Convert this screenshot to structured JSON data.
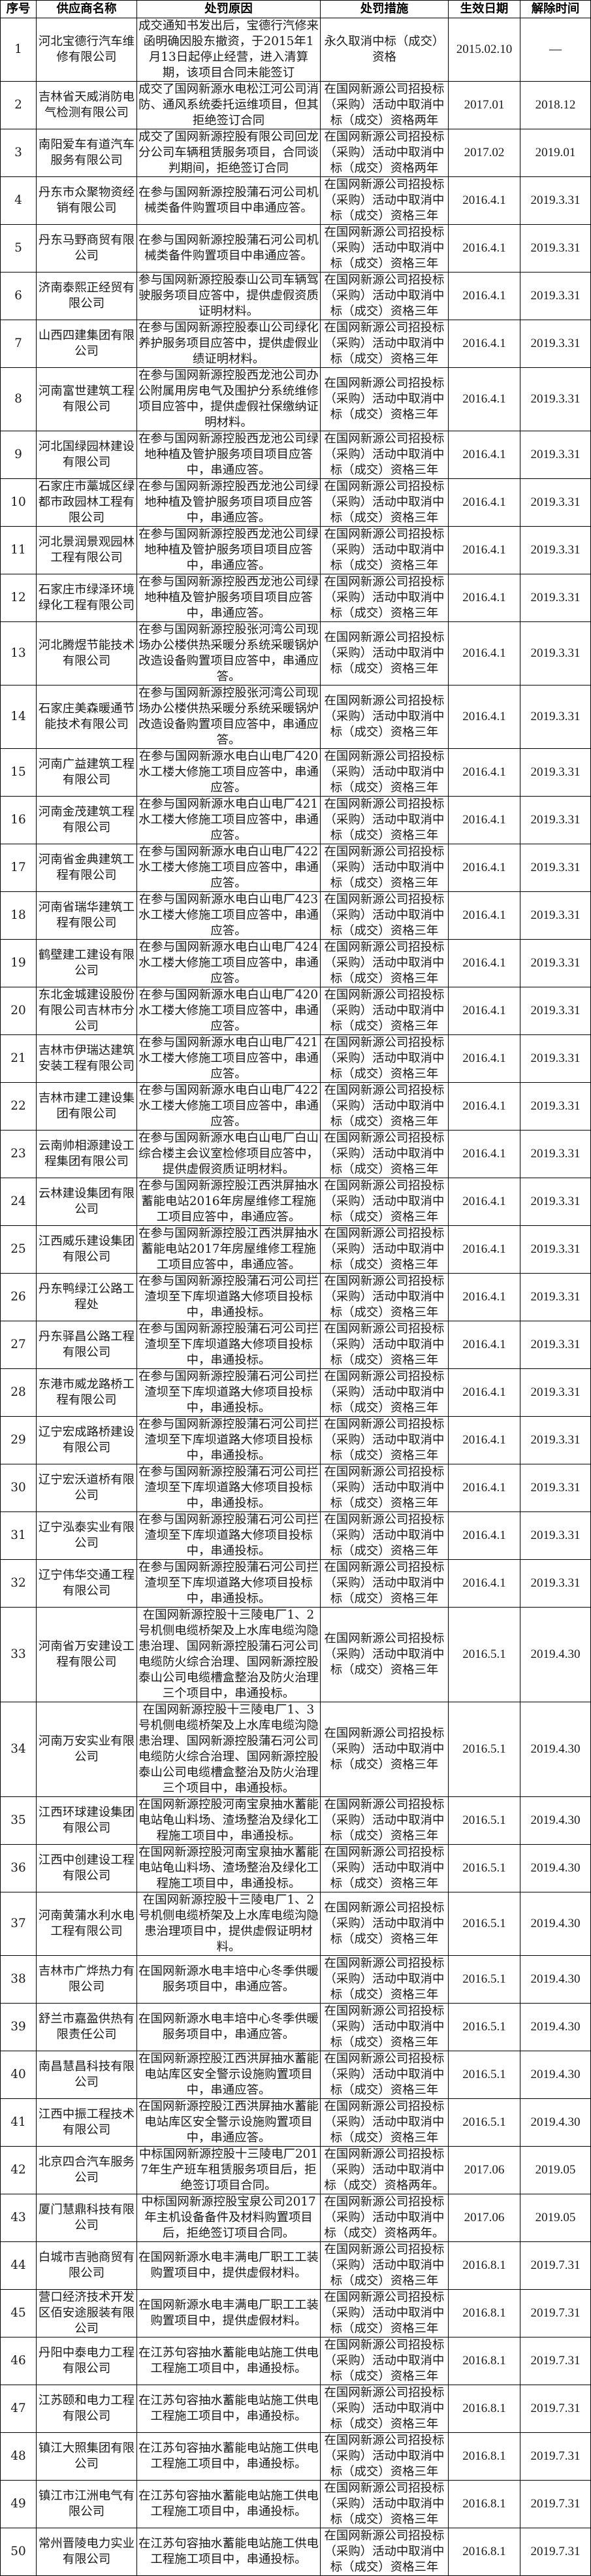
{
  "headers": [
    "序号",
    "供应商名称",
    "处罚原因",
    "处罚措施",
    "生效日期",
    "解除时间"
  ],
  "rows": [
    {
      "no": "1",
      "name": "河北宝德行汽车维修有限公司",
      "reason": "成交通知书发出后，宝德行汽修来函明确因股东撤资，于2015年1月13日起停止经营，进入清算期，该项目合同未能签订",
      "measure": "永久取消中标（成交）资格",
      "start": "2015.02.10",
      "end": "—"
    },
    {
      "no": "2",
      "name": "吉林省天威消防电气检测有限公司",
      "reason": "成交了国网新源水电松江河公司消防、通风系统委托运维项目，但其拒绝签订合同",
      "measure": "在国网新源公司招投标（采购）活动中取消中标（成交）资格两年",
      "start": "2017.01",
      "end": "2018.12"
    },
    {
      "no": "3",
      "name": "南阳爱车有道汽车服务有限公司",
      "reason": "成交了国网新源控股有限公司回龙分公司车辆租赁服务项目，合同谈判期间，拒绝签订合同",
      "measure": "在国网新源公司招投标（采购）活动中取消中标（成交）资格两年",
      "start": "2017.02",
      "end": "2019.01"
    },
    {
      "no": "4",
      "name": "丹东市众聚物资经销有限公司",
      "reason": "在参与国网新源控股蒲石河公司机械类备件购置项目中串通应答。",
      "measure": "在国网新源公司招投标（采购）活动中取消中标（成交）资格三年",
      "start": "2016.4.1",
      "end": "2019.3.31"
    },
    {
      "no": "5",
      "name": "丹东马野商贸有限公司",
      "reason": "在参与国网新源控股蒲石河公司机械类备件购置项目中串通应答。",
      "measure": "在国网新源公司招投标（采购）活动中取消中标（成交）资格三年",
      "start": "2016.4.1",
      "end": "2019.3.31"
    },
    {
      "no": "6",
      "name": "济南泰熙正经贸有限公司",
      "reason": "参与国网新源控股泰山公司车辆驾驶服务项目应答中，提供虚假资质证明材料。",
      "measure": "在国网新源公司招投标（采购）活动中取消中标（成交）资格三年",
      "start": "2016.4.1",
      "end": "2019.3.31"
    },
    {
      "no": "7",
      "name": "山西四建集团有限公司",
      "reason": "在参与国网新源控股泰山公司绿化养护服务项目应答中，提供虚假业绩证明材料。",
      "measure": "在国网新源公司招投标（采购）活动中取消中标（成交）资格三年",
      "start": "2016.4.1",
      "end": "2019.3.31"
    },
    {
      "no": "8",
      "name": "河南富世建筑工程有限公司",
      "reason": "在参与国网新源控股西龙池公司办公附属用房电气及围护分系统维修项目应答中，提供虚假社保缴纳证明材料。",
      "measure": "在国网新源公司招投标（采购）活动中取消中标（成交）资格三年",
      "start": "2016.4.1",
      "end": "2019.3.31"
    },
    {
      "no": "9",
      "name": "河北国绿园林建设有限公司",
      "reason": "在参与国网新源控股西龙池公司绿地种植及管护服务项目项目应答中，串通应答。",
      "measure": "在国网新源公司招投标（采购）活动中取消中标（成交）资格三年",
      "start": "2016.4.1",
      "end": "2019.3.31"
    },
    {
      "no": "10",
      "name": "石家庄市藁城区绿都市政园林工程有限公司",
      "reason": "在参与国网新源控股西龙池公司绿地种植及管护服务项目项目应答中，串通应答。",
      "measure": "在国网新源公司招投标（采购）活动中取消中标（成交）资格三年",
      "start": "2016.4.1",
      "end": "2019.3.31"
    },
    {
      "no": "11",
      "name": "河北景润景观园林工程有限公司",
      "reason": "在参与国网新源控股西龙池公司绿地种植及管护服务项目项目应答中，串通应答。",
      "measure": "在国网新源公司招投标（采购）活动中取消中标（成交）资格三年",
      "start": "2016.4.1",
      "end": "2019.3.31"
    },
    {
      "no": "12",
      "name": "石家庄市绿泽环境绿化工程有限公司",
      "reason": "在参与国网新源控股西龙池公司绿地种植及管护服务项目项目应答中，串通应答。",
      "measure": "在国网新源公司招投标（采购）活动中取消中标（成交）资格三年",
      "start": "2016.4.1",
      "end": "2019.3.31"
    },
    {
      "no": "13",
      "name": "河北腾煜节能技术有限公司",
      "reason": "在参与国网新源控股张河湾公司现场办公楼供热采暖分系统采暖锅炉改造设备购置项目应答中，串通应答。",
      "measure": "在国网新源公司招投标（采购）活动中取消中标（成交）资格三年",
      "start": "2016.4.1",
      "end": "2019.3.31"
    },
    {
      "no": "14",
      "name": "石家庄美森暖通节能技术有限公司",
      "reason": "在参与国网新源控股张河湾公司现场办公楼供热采暖分系统采暖锅炉改造设备购置项目应答中，串通应答。",
      "measure": "在国网新源公司招投标（采购）活动中取消中标（成交）资格三年",
      "start": "2016.4.1",
      "end": "2019.3.31"
    },
    {
      "no": "15",
      "name": "河南广益建筑工程有限公司",
      "reason": "在参与国网新源水电白山电厂420水工楼大修施工项目应答中，串通应答。",
      "measure": "在国网新源公司招投标（采购）活动中取消中标（成交）资格三年",
      "start": "2016.4.1",
      "end": "2019.3.31"
    },
    {
      "no": "16",
      "name": "河南金茂建筑工程有限公司",
      "reason": "在参与国网新源水电白山电厂421水工楼大修施工项目应答中，串通应答。",
      "measure": "在国网新源公司招投标（采购）活动中取消中标（成交）资格三年",
      "start": "2016.4.1",
      "end": "2019.3.31"
    },
    {
      "no": "17",
      "name": "河南省金典建筑工程有限公司",
      "reason": "在参与国网新源水电白山电厂422水工楼大修施工项目应答中，串通应答。",
      "measure": "在国网新源公司招投标（采购）活动中取消中标（成交）资格三年",
      "start": "2016.4.1",
      "end": "2019.3.31"
    },
    {
      "no": "18",
      "name": "河南省瑞华建筑工程有限公司",
      "reason": "在参与国网新源水电白山电厂423水工楼大修施工项目应答中，串通应答。",
      "measure": "在国网新源公司招投标（采购）活动中取消中标（成交）资格三年",
      "start": "2016.4.1",
      "end": "2019.3.31"
    },
    {
      "no": "19",
      "name": "鹤壁建工建设有限公司",
      "reason": "在参与国网新源水电白山电厂424水工楼大修施工项目应答中，串通应答。",
      "measure": "在国网新源公司招投标（采购）活动中取消中标（成交）资格三年",
      "start": "2016.4.1",
      "end": "2019.3.31"
    },
    {
      "no": "20",
      "name": "东北金城建设股份有限公司吉林市分公司",
      "reason": "在参与国网新源水电白山电厂420水工楼大修施工项目应答中，串通应答。",
      "measure": "在国网新源公司招投标（采购）活动中取消中标（成交）资格三年",
      "start": "2016.4.1",
      "end": "2019.3.31"
    },
    {
      "no": "21",
      "name": "吉林市伊瑞达建筑安装工程有限公司",
      "reason": "在参与国网新源水电白山电厂421水工楼大修施工项目应答中，串通应答。",
      "measure": "在国网新源公司招投标（采购）活动中取消中标（成交）资格三年",
      "start": "2016.4.1",
      "end": "2019.3.31"
    },
    {
      "no": "22",
      "name": "吉林市建工建设集团有限公司",
      "reason": "在参与国网新源水电白山电厂422水工楼大修施工项目应答中，串通应答。",
      "measure": "在国网新源公司招投标（采购）活动中取消中标（成交）资格三年",
      "start": "2016.4.1",
      "end": "2019.3.31"
    },
    {
      "no": "23",
      "name": "云南帅相源建设工程集团有限公司",
      "reason": "在参与国网新源水电白山电厂白山综合楼主会议室检修项目应答中，提供虚假资质证明材料。",
      "measure": "在国网新源公司招投标（采购）活动中取消中标（成交）资格三年",
      "start": "2016.4.1",
      "end": "2019.3.31"
    },
    {
      "no": "24",
      "name": "云林建设集团有限公司",
      "reason": "在参与国网新源控股江西洪屏抽水蓄能电站2016年房屋维修工程施工项目应答中，串通应答。",
      "measure": "在国网新源公司招投标（采购）活动中取消中标（成交）资格三年",
      "start": "2016.4.1",
      "end": "2019.3.31"
    },
    {
      "no": "25",
      "name": "江西威乐建设集团有限公司",
      "reason": "在参与国网新源控股江西洪屏抽水蓄能电站2017年房屋维修工程施工项目应答中，串通应答。",
      "measure": "在国网新源公司招投标（采购）活动中取消中标（成交）资格三年",
      "start": "2016.4.1",
      "end": "2019.3.31"
    },
    {
      "no": "26",
      "name": "丹东鸭绿江公路工程处",
      "reason": "在参与国网新源控股蒲石河公司拦渣坝至下库坝道路大修项目投标中，串通投标。",
      "measure": "在国网新源公司招投标（采购）活动中取消中标（成交）资格三年",
      "start": "2016.4.1",
      "end": "2019.3.31"
    },
    {
      "no": "27",
      "name": "丹东驿昌公路工程有限公司",
      "reason": "在参与国网新源控股蒲石河公司拦渣坝至下库坝道路大修项目投标中，串通投标。",
      "measure": "在国网新源公司招投标（采购）活动中取消中标（成交）资格三年",
      "start": "2016.4.1",
      "end": "2019.3.31"
    },
    {
      "no": "28",
      "name": "东港市威龙路桥工程有限公司",
      "reason": "在参与国网新源控股蒲石河公司拦渣坝至下库坝道路大修项目投标中，串通投标。",
      "measure": "在国网新源公司招投标（采购）活动中取消中标（成交）资格三年",
      "start": "2016.4.1",
      "end": "2019.3.31"
    },
    {
      "no": "29",
      "name": "辽宁宏成路桥建设有限公司",
      "reason": "在参与国网新源控股蒲石河公司拦渣坝至下库坝道路大修项目投标中，串通投标。",
      "measure": "在国网新源公司招投标（采购）活动中取消中标（成交）资格三年",
      "start": "2016.4.1",
      "end": "2019.3.31"
    },
    {
      "no": "30",
      "name": "辽宁宏沃道桥有限公司",
      "reason": "在参与国网新源控股蒲石河公司拦渣坝至下库坝道路大修项目投标中，串通投标。",
      "measure": "在国网新源公司招投标（采购）活动中取消中标（成交）资格三年",
      "start": "2016.4.1",
      "end": "2019.3.31"
    },
    {
      "no": "31",
      "name": "辽宁泓泰实业有限公司",
      "reason": "在参与国网新源控股蒲石河公司拦渣坝至下库坝道路大修项目投标中，串通投标。",
      "measure": "在国网新源公司招投标（采购）活动中取消中标（成交）资格三年",
      "start": "2016.4.1",
      "end": "2019.3.31"
    },
    {
      "no": "32",
      "name": "辽宁伟华交通工程有限公司",
      "reason": "在参与国网新源控股蒲石河公司拦渣坝至下库坝道路大修项目投标中，串通投标。",
      "measure": "在国网新源公司招投标（采购）活动中取消中标（成交）资格三年",
      "start": "2016.4.1",
      "end": "2019.3.31"
    },
    {
      "no": "33",
      "name": "河南省万安建设工程有限公司",
      "reason": "在国网新源控股十三陵电厂1、2号机侧电缆桥架及上水库电缆沟隐患治理、国网新源控股蒲石河公司电缆防火综合治理、国网新源控股泰山公司电缆槽盒整治及防火治理三个项目中，串通投标。",
      "measure": "在国网新源公司招投标（采购）活动中取消中标（成交）资格三年",
      "start": "2016.5.1",
      "end": "2019.4.30"
    },
    {
      "no": "34",
      "name": "河南万安实业有限公司",
      "reason": "在国网新源控股十三陵电厂1、3号机侧电缆桥架及上水库电缆沟隐患治理、国网新源控股蒲石河公司电缆防火综合治理、国网新源控股泰山公司电缆槽盒整治及防火治理三个项目中，串通投标。",
      "measure": "在国网新源公司招投标（采购）活动中取消中标（成交）资格三年",
      "start": "2016.5.1",
      "end": "2019.4.30"
    },
    {
      "no": "35",
      "name": "江西环球建设集团有限公司",
      "reason": "在国网新源控股河南宝泉抽水蓄能电站龟山料场、渣场整治及绿化工程施工项目中，串通投标。",
      "measure": "在国网新源公司招投标（采购）活动中取消中标（成交）资格三年",
      "start": "2016.5.1",
      "end": "2019.4.30"
    },
    {
      "no": "36",
      "name": "江西中创建设工程有限公司",
      "reason": "在国网新源控股河南宝泉抽水蓄能电站龟山料场、渣场整治及绿化工程施工项目中，串通投标。",
      "measure": "在国网新源公司招投标（采购）活动中取消中标（成交）资格三年",
      "start": "2016.5.1",
      "end": "2019.4.30"
    },
    {
      "no": "37",
      "name": "河南黄蒲水利水电工程有限公司",
      "reason": "在国网新源控股十三陵电厂1、2号机侧电缆桥架及上水库电缆沟隐患治理项目中，提供虚假证明材料。",
      "measure": "在国网新源公司招投标（采购）活动中取消中标（成交）资格三年",
      "start": "2016.5.1",
      "end": "2019.4.30"
    },
    {
      "no": "38",
      "name": "吉林市广烨热力有限公司",
      "reason": "在国网新源水电丰培中心冬季供暖服务项目中，串通应答。",
      "measure": "在国网新源公司招投标（采购）活动中取消中标（成交）资格三年",
      "start": "2016.5.1",
      "end": "2019.4.30"
    },
    {
      "no": "39",
      "name": "舒兰市嘉盈供热有限责任公司",
      "reason": "在国网新源水电丰培中心冬季供暖服务项目中，串通应答。",
      "measure": "在国网新源公司招投标（采购）活动中取消中标（成交）资格三年",
      "start": "2016.5.1",
      "end": "2019.4.30"
    },
    {
      "no": "40",
      "name": "南昌慧昌科技有限公司",
      "reason": "在国网新源控股江西洪屏抽水蓄能电站库区安全警示设施购置项目中，串通应答。",
      "measure": "在国网新源公司招投标（采购）活动中取消中标（成交）资格三年",
      "start": "2016.5.1",
      "end": "2019.4.30"
    },
    {
      "no": "41",
      "name": "江西中振工程技术有限公司",
      "reason": "在国网新源控股江西洪屏抽水蓄能电站库区安全警示设施购置项目中，串通应答。",
      "measure": "在国网新源公司招投标（采购）活动中取消中标（成交）资格三年",
      "start": "2016.5.1",
      "end": "2019.4.30"
    },
    {
      "no": "42",
      "name": "北京四合汽车服务公司",
      "reason": "中标国网新源控股十三陵电厂2017年生产班车租赁服务项目后，拒绝签订项目合同。",
      "measure": "在国网新源公司招投标（采购）活动中取消中标（成交）资格两年。",
      "start": "2017.06",
      "end": "2019.05"
    },
    {
      "no": "43",
      "name": "厦门慧鼎科技有限公司",
      "reason": "中标国网新源控股宝泉公司2017年主机设备备件及材料购置项目后，拒绝签订项目合同。",
      "measure": "在国网新源公司招投标（采购）活动中取消中标（成交）资格两年。",
      "start": "2017.06",
      "end": "2019.05"
    },
    {
      "no": "44",
      "name": "白城市吉驰商贸有限公司",
      "reason": "在国网新源水电丰满电厂职工工装购置项目中，提供虚假材料。",
      "measure": "在国网新源公司招投标（采购）活动中取消中标（成交）资格三年",
      "start": "2016.8.1",
      "end": "2019.7.31"
    },
    {
      "no": "45",
      "name": "营口经济技术开发区佰安途服装有限公司",
      "reason": "在国网新源水电丰满电厂职工工装购置项目中，提供虚假材料。",
      "measure": "在国网新源公司招投标（采购）活动中取消中标（成交）资格三年",
      "start": "2016.8.1",
      "end": "2019.7.31"
    },
    {
      "no": "46",
      "name": "丹阳中泰电力工程有限公司",
      "reason": "在江苏句容抽水蓄能电站施工供电工程施工项目中，串通投标。",
      "measure": "在国网新源公司招投标（采购）活动中取消中标（成交）资格三年",
      "start": "2016.8.1",
      "end": "2019.7.31"
    },
    {
      "no": "47",
      "name": "江苏颐和电力工程有限公司",
      "reason": "在江苏句容抽水蓄能电站施工供电工程施工项目中，串通投标。",
      "measure": "在国网新源公司招投标（采购）活动中取消中标（成交）资格三年",
      "start": "2016.8.1",
      "end": "2019.7.31"
    },
    {
      "no": "48",
      "name": "镇江大照集团有限公司",
      "reason": "在江苏句容抽水蓄能电站施工供电工程施工项目中，串通投标。",
      "measure": "在国网新源公司招投标（采购）活动中取消中标（成交）资格三年",
      "start": "2016.8.1",
      "end": "2019.7.31"
    },
    {
      "no": "49",
      "name": "镇江市江洲电气有限公司",
      "reason": "在江苏句容抽水蓄能电站施工供电工程施工项目中，串通投标。",
      "measure": "在国网新源公司招投标（采购）活动中取消中标（成交）资格三年",
      "start": "2016.8.1",
      "end": "2019.7.31"
    },
    {
      "no": "50",
      "name": "常州晋陵电力实业有限公司",
      "reason": "在江苏句容抽水蓄能电站施工供电工程施工项目中，串通投标。",
      "measure": "在国网新源公司招投标（采购）活动中取消中标（成交）资格三年",
      "start": "2016.8.1",
      "end": "2019.7.31"
    }
  ]
}
